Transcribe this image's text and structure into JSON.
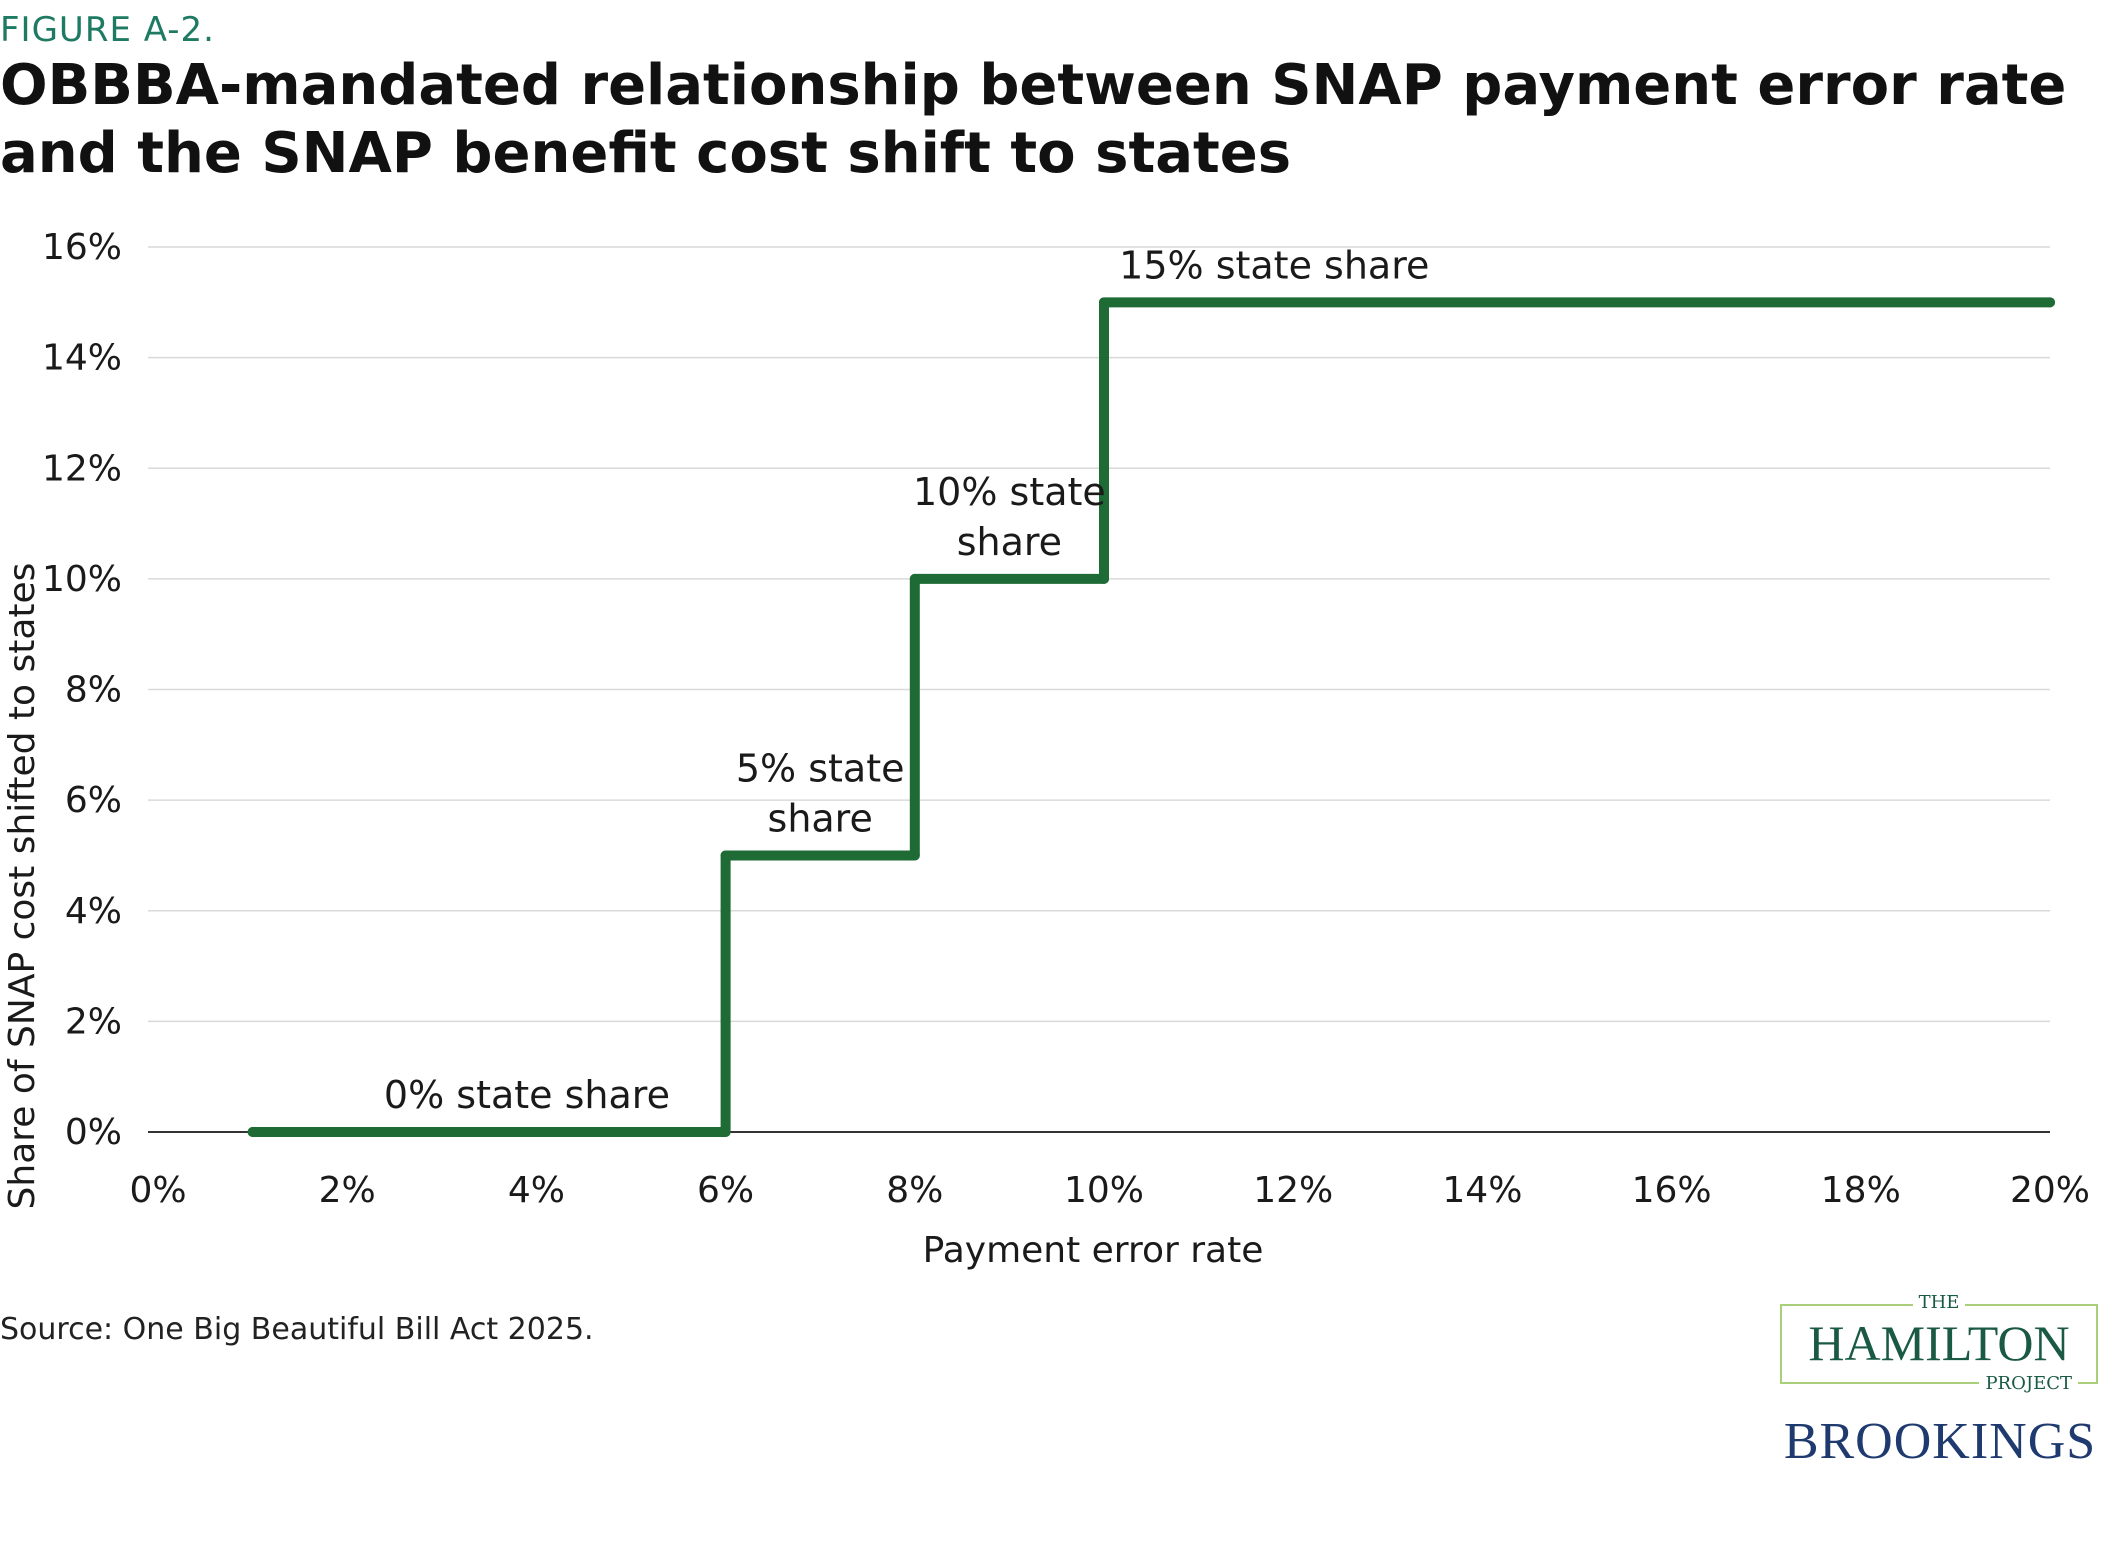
{
  "figure_label": "FIGURE A-2.",
  "title": "OBBBA-mandated relationship between SNAP payment error rate and the SNAP benefit cost shift to states",
  "source": "Source: One Big Beautiful Bill Act 2025.",
  "logos": {
    "hamilton_the": "THE",
    "hamilton_name": "HAMILTON",
    "hamilton_project": "PROJECT",
    "brookings": "BROOKINGS"
  },
  "colors": {
    "line": "#1e6b35",
    "grid": "#d9d9d9",
    "figure_label": "#1e7a63"
  },
  "chart_data": {
    "type": "line",
    "xlabel": "Payment error rate",
    "ylabel": "Share of SNAP cost shifted to states",
    "xlim": [
      0,
      20
    ],
    "ylim": [
      0,
      16
    ],
    "xticks": [
      0,
      2,
      4,
      6,
      8,
      10,
      12,
      14,
      16,
      18,
      20
    ],
    "yticks": [
      0,
      2,
      4,
      6,
      8,
      10,
      12,
      14,
      16
    ],
    "xtick_labels": [
      "0%",
      "2%",
      "4%",
      "6%",
      "8%",
      "10%",
      "12%",
      "14%",
      "16%",
      "18%",
      "20%"
    ],
    "ytick_labels": [
      "0%",
      "2%",
      "4%",
      "6%",
      "8%",
      "10%",
      "12%",
      "14%",
      "16%"
    ],
    "grid": "horizontal",
    "series": [
      {
        "x": [
          1,
          6,
          6,
          8,
          8,
          10,
          10,
          20
        ],
        "y": [
          0,
          0,
          5,
          5,
          10,
          10,
          15,
          15
        ]
      }
    ],
    "annotations": [
      {
        "lines": [
          "0% state share"
        ],
        "x": 3.9,
        "y": 0
      },
      {
        "lines": [
          "5% state",
          "share"
        ],
        "x": 7.0,
        "y": 5
      },
      {
        "lines": [
          "10% state",
          "share"
        ],
        "x": 9.0,
        "y": 10
      },
      {
        "lines": [
          "15% state share"
        ],
        "x": 11.8,
        "y": 15
      }
    ]
  }
}
